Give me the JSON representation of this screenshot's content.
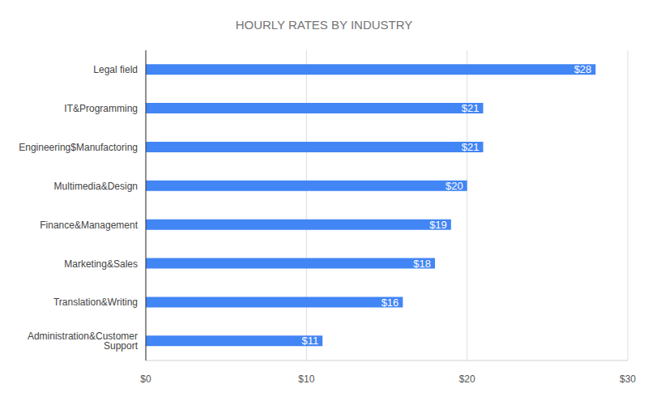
{
  "chart_data": {
    "type": "bar",
    "title": "HOURLY RATES BY INDUSTRY",
    "orientation": "horizontal",
    "categories": [
      "Legal field",
      "IT&Programming",
      "Engineering$Manufactoring",
      "Multimedia&Design",
      "Finance&Management",
      "Marketing&Sales",
      "Translation&Writing",
      "Administration&Customer Support"
    ],
    "values": [
      28,
      21,
      21,
      20,
      19,
      18,
      16,
      11
    ],
    "value_labels": [
      "$28",
      "$21",
      "$21",
      "$20",
      "$19",
      "$18",
      "$16",
      "$11"
    ],
    "color": "#4285f4",
    "xlim": [
      0,
      30
    ],
    "xticks": [
      {
        "value": 0,
        "label": "$0"
      },
      {
        "value": 10,
        "label": "$10"
      },
      {
        "value": 20,
        "label": "$20"
      },
      {
        "value": 30,
        "label": "$30"
      }
    ],
    "grid": true,
    "data_labels": true
  }
}
